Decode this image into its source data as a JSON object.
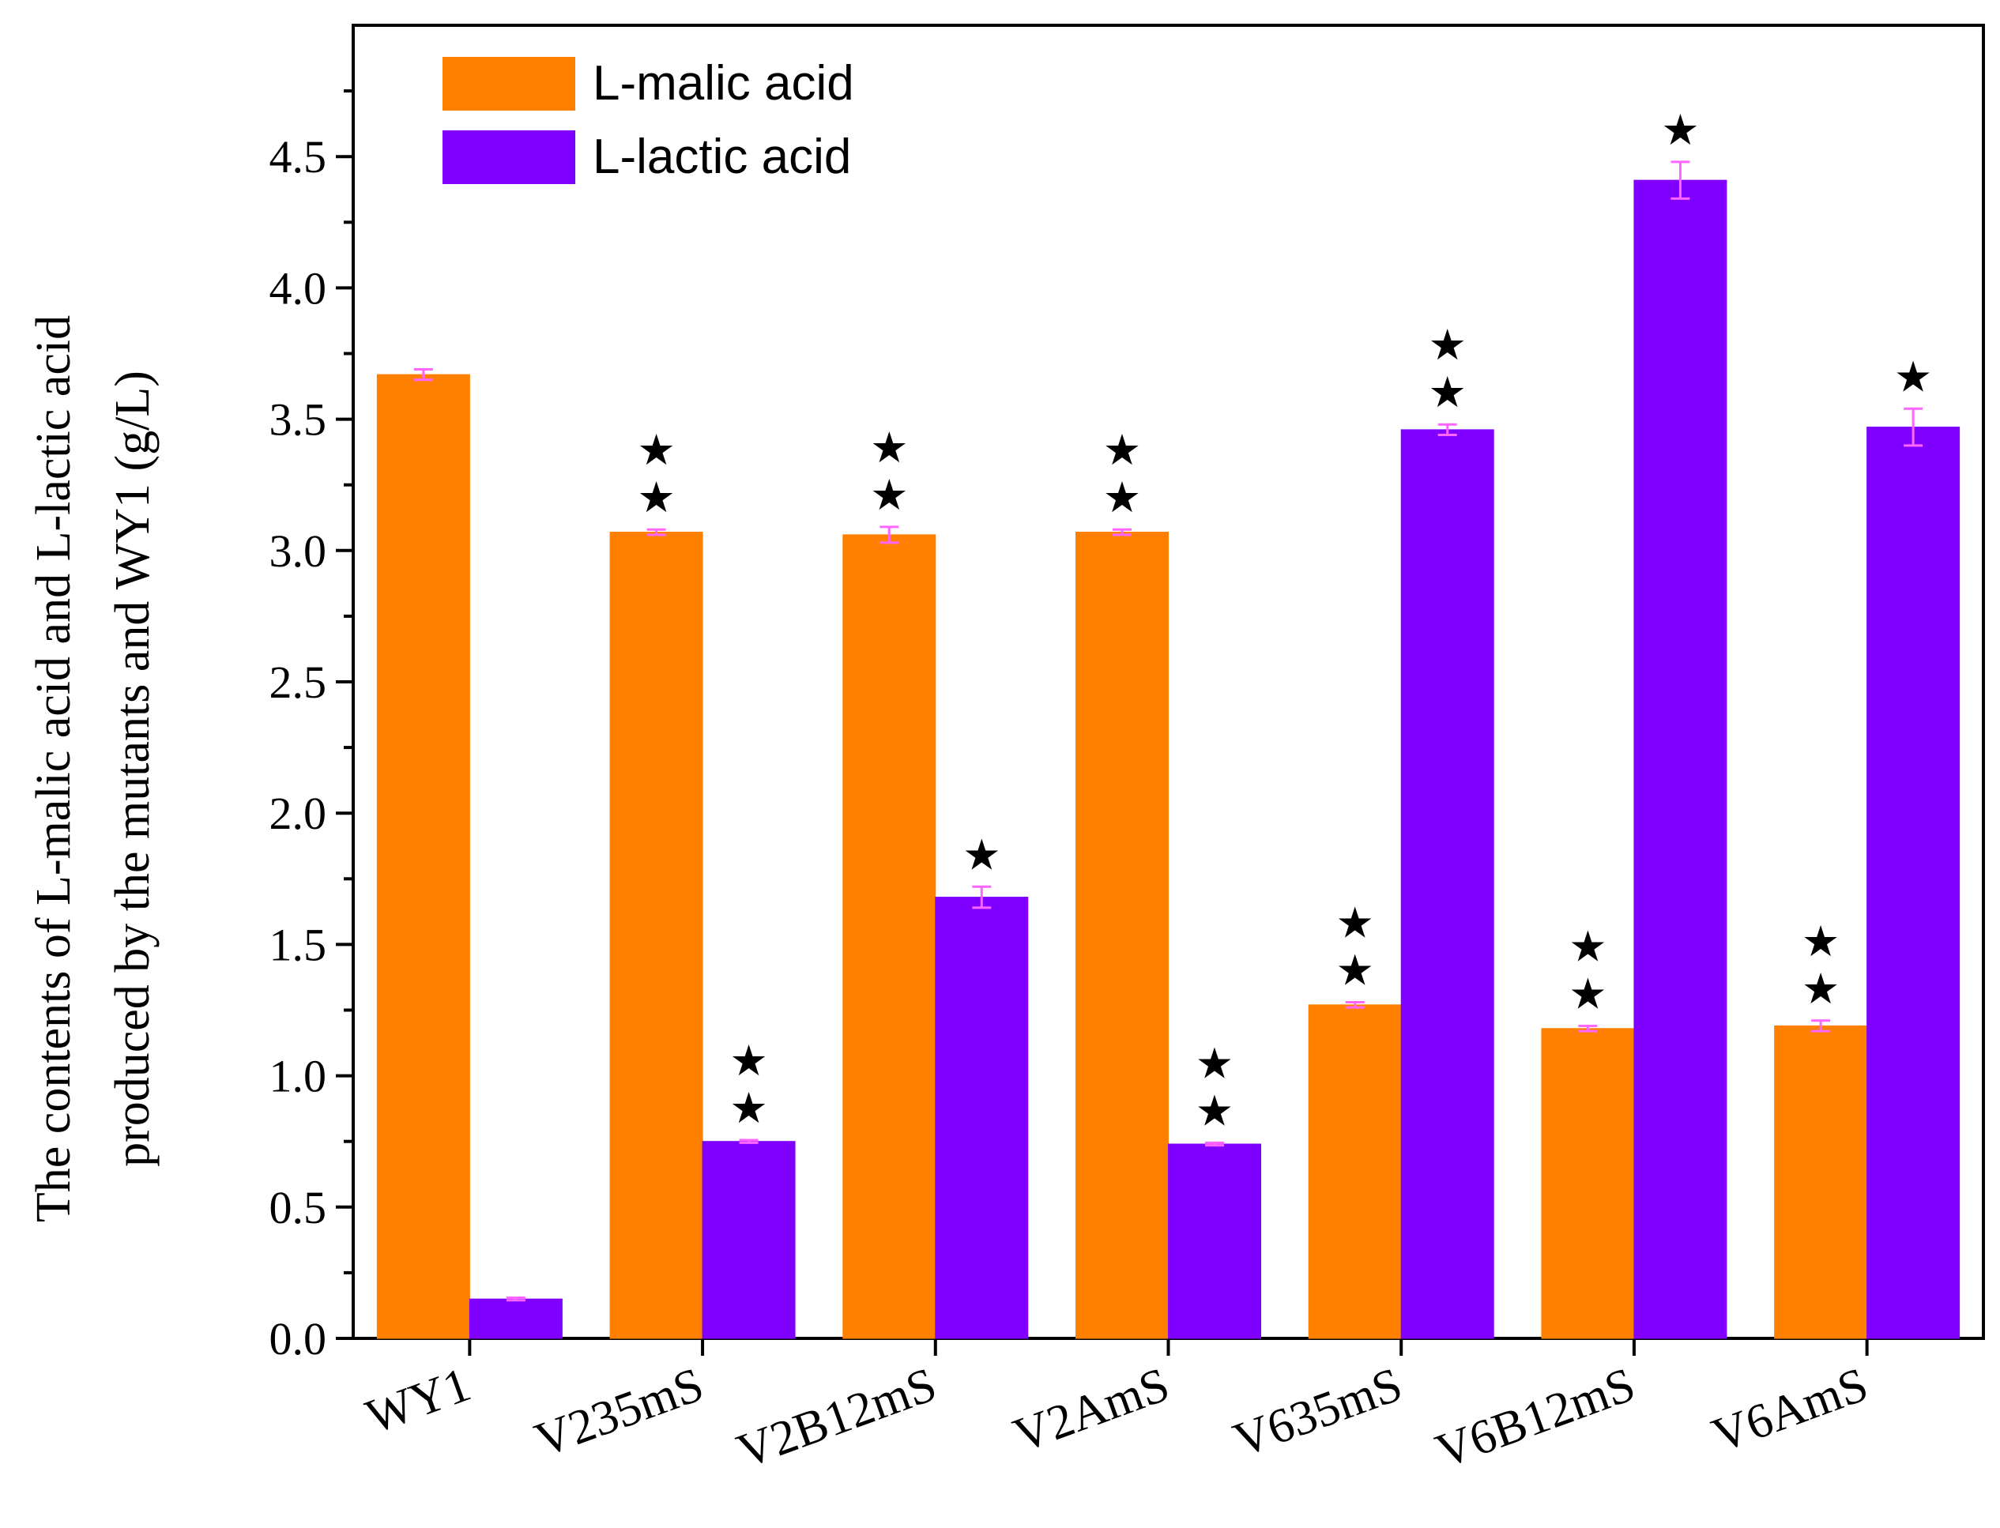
{
  "chart_data": {
    "type": "bar",
    "title": "",
    "xlabel": "",
    "ylabel_lines": [
      "The contents of L-malic acid and L-lactic acid",
      "produced by the mutants and WY1 (g/L)"
    ],
    "ylim": [
      0,
      5.0
    ],
    "ytick_values": [
      0.0,
      0.5,
      1.0,
      1.5,
      2.0,
      2.5,
      3.0,
      3.5,
      4.0,
      4.5
    ],
    "ytick_labels": [
      "0.0",
      "0.5",
      "1.0",
      "1.5",
      "2.0",
      "2.5",
      "3.0",
      "3.5",
      "4.0",
      "4.5"
    ],
    "categories": [
      "WY1",
      "V235mS",
      "V2B12mS",
      "V2AmS",
      "V635mS",
      "V6B12mS",
      "V6AmS"
    ],
    "legend_position": "top-left",
    "series": [
      {
        "name": "L-malic acid",
        "color": "#FF8000",
        "values": [
          3.67,
          3.07,
          3.06,
          3.07,
          1.27,
          1.18,
          1.19
        ],
        "errors": [
          0.02,
          0.01,
          0.03,
          0.01,
          0.01,
          0.01,
          0.02
        ],
        "significance": [
          "",
          "★★",
          "★★",
          "★★",
          "★★",
          "★★",
          "★★"
        ]
      },
      {
        "name": "L-lactic acid",
        "color": "#8000FF",
        "values": [
          0.15,
          0.75,
          1.68,
          0.74,
          3.46,
          4.41,
          3.47
        ],
        "errors": [
          0.005,
          0.005,
          0.04,
          0.005,
          0.02,
          0.07,
          0.07
        ],
        "significance": [
          "",
          "★★",
          "★",
          "★★",
          "★★",
          "★",
          "★"
        ]
      }
    ],
    "error_bar_color": "#FF66FF",
    "star_glyph": "★"
  }
}
